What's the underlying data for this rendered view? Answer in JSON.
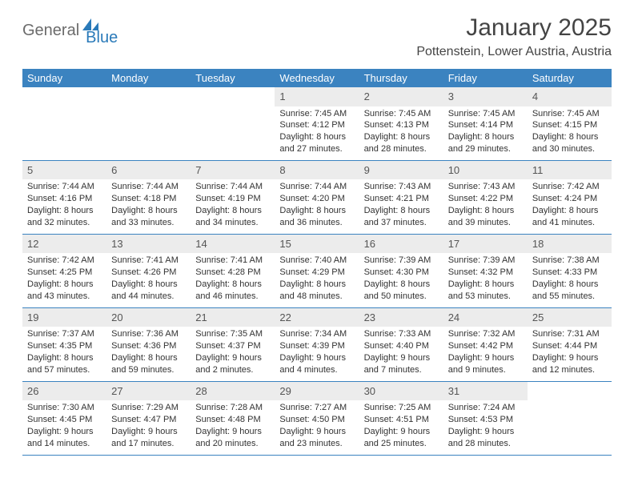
{
  "logo": {
    "part1": "General",
    "part2": "Blue"
  },
  "title": "January 2025",
  "location": "Pottenstein, Lower Austria, Austria",
  "colors": {
    "header_bg": "#3b83c0",
    "header_text": "#ffffff",
    "daynum_bg": "#ececec",
    "border": "#3b83c0",
    "logo_gray": "#6b6b6b",
    "logo_blue": "#2a7ab9"
  },
  "dayHeaders": [
    "Sunday",
    "Monday",
    "Tuesday",
    "Wednesday",
    "Thursday",
    "Friday",
    "Saturday"
  ],
  "weeks": [
    [
      {
        "num": "",
        "sunrise": "",
        "sunset": "",
        "daylight": ""
      },
      {
        "num": "",
        "sunrise": "",
        "sunset": "",
        "daylight": ""
      },
      {
        "num": "",
        "sunrise": "",
        "sunset": "",
        "daylight": ""
      },
      {
        "num": "1",
        "sunrise": "Sunrise: 7:45 AM",
        "sunset": "Sunset: 4:12 PM",
        "daylight": "Daylight: 8 hours and 27 minutes."
      },
      {
        "num": "2",
        "sunrise": "Sunrise: 7:45 AM",
        "sunset": "Sunset: 4:13 PM",
        "daylight": "Daylight: 8 hours and 28 minutes."
      },
      {
        "num": "3",
        "sunrise": "Sunrise: 7:45 AM",
        "sunset": "Sunset: 4:14 PM",
        "daylight": "Daylight: 8 hours and 29 minutes."
      },
      {
        "num": "4",
        "sunrise": "Sunrise: 7:45 AM",
        "sunset": "Sunset: 4:15 PM",
        "daylight": "Daylight: 8 hours and 30 minutes."
      }
    ],
    [
      {
        "num": "5",
        "sunrise": "Sunrise: 7:44 AM",
        "sunset": "Sunset: 4:16 PM",
        "daylight": "Daylight: 8 hours and 32 minutes."
      },
      {
        "num": "6",
        "sunrise": "Sunrise: 7:44 AM",
        "sunset": "Sunset: 4:18 PM",
        "daylight": "Daylight: 8 hours and 33 minutes."
      },
      {
        "num": "7",
        "sunrise": "Sunrise: 7:44 AM",
        "sunset": "Sunset: 4:19 PM",
        "daylight": "Daylight: 8 hours and 34 minutes."
      },
      {
        "num": "8",
        "sunrise": "Sunrise: 7:44 AM",
        "sunset": "Sunset: 4:20 PM",
        "daylight": "Daylight: 8 hours and 36 minutes."
      },
      {
        "num": "9",
        "sunrise": "Sunrise: 7:43 AM",
        "sunset": "Sunset: 4:21 PM",
        "daylight": "Daylight: 8 hours and 37 minutes."
      },
      {
        "num": "10",
        "sunrise": "Sunrise: 7:43 AM",
        "sunset": "Sunset: 4:22 PM",
        "daylight": "Daylight: 8 hours and 39 minutes."
      },
      {
        "num": "11",
        "sunrise": "Sunrise: 7:42 AM",
        "sunset": "Sunset: 4:24 PM",
        "daylight": "Daylight: 8 hours and 41 minutes."
      }
    ],
    [
      {
        "num": "12",
        "sunrise": "Sunrise: 7:42 AM",
        "sunset": "Sunset: 4:25 PM",
        "daylight": "Daylight: 8 hours and 43 minutes."
      },
      {
        "num": "13",
        "sunrise": "Sunrise: 7:41 AM",
        "sunset": "Sunset: 4:26 PM",
        "daylight": "Daylight: 8 hours and 44 minutes."
      },
      {
        "num": "14",
        "sunrise": "Sunrise: 7:41 AM",
        "sunset": "Sunset: 4:28 PM",
        "daylight": "Daylight: 8 hours and 46 minutes."
      },
      {
        "num": "15",
        "sunrise": "Sunrise: 7:40 AM",
        "sunset": "Sunset: 4:29 PM",
        "daylight": "Daylight: 8 hours and 48 minutes."
      },
      {
        "num": "16",
        "sunrise": "Sunrise: 7:39 AM",
        "sunset": "Sunset: 4:30 PM",
        "daylight": "Daylight: 8 hours and 50 minutes."
      },
      {
        "num": "17",
        "sunrise": "Sunrise: 7:39 AM",
        "sunset": "Sunset: 4:32 PM",
        "daylight": "Daylight: 8 hours and 53 minutes."
      },
      {
        "num": "18",
        "sunrise": "Sunrise: 7:38 AM",
        "sunset": "Sunset: 4:33 PM",
        "daylight": "Daylight: 8 hours and 55 minutes."
      }
    ],
    [
      {
        "num": "19",
        "sunrise": "Sunrise: 7:37 AM",
        "sunset": "Sunset: 4:35 PM",
        "daylight": "Daylight: 8 hours and 57 minutes."
      },
      {
        "num": "20",
        "sunrise": "Sunrise: 7:36 AM",
        "sunset": "Sunset: 4:36 PM",
        "daylight": "Daylight: 8 hours and 59 minutes."
      },
      {
        "num": "21",
        "sunrise": "Sunrise: 7:35 AM",
        "sunset": "Sunset: 4:37 PM",
        "daylight": "Daylight: 9 hours and 2 minutes."
      },
      {
        "num": "22",
        "sunrise": "Sunrise: 7:34 AM",
        "sunset": "Sunset: 4:39 PM",
        "daylight": "Daylight: 9 hours and 4 minutes."
      },
      {
        "num": "23",
        "sunrise": "Sunrise: 7:33 AM",
        "sunset": "Sunset: 4:40 PM",
        "daylight": "Daylight: 9 hours and 7 minutes."
      },
      {
        "num": "24",
        "sunrise": "Sunrise: 7:32 AM",
        "sunset": "Sunset: 4:42 PM",
        "daylight": "Daylight: 9 hours and 9 minutes."
      },
      {
        "num": "25",
        "sunrise": "Sunrise: 7:31 AM",
        "sunset": "Sunset: 4:44 PM",
        "daylight": "Daylight: 9 hours and 12 minutes."
      }
    ],
    [
      {
        "num": "26",
        "sunrise": "Sunrise: 7:30 AM",
        "sunset": "Sunset: 4:45 PM",
        "daylight": "Daylight: 9 hours and 14 minutes."
      },
      {
        "num": "27",
        "sunrise": "Sunrise: 7:29 AM",
        "sunset": "Sunset: 4:47 PM",
        "daylight": "Daylight: 9 hours and 17 minutes."
      },
      {
        "num": "28",
        "sunrise": "Sunrise: 7:28 AM",
        "sunset": "Sunset: 4:48 PM",
        "daylight": "Daylight: 9 hours and 20 minutes."
      },
      {
        "num": "29",
        "sunrise": "Sunrise: 7:27 AM",
        "sunset": "Sunset: 4:50 PM",
        "daylight": "Daylight: 9 hours and 23 minutes."
      },
      {
        "num": "30",
        "sunrise": "Sunrise: 7:25 AM",
        "sunset": "Sunset: 4:51 PM",
        "daylight": "Daylight: 9 hours and 25 minutes."
      },
      {
        "num": "31",
        "sunrise": "Sunrise: 7:24 AM",
        "sunset": "Sunset: 4:53 PM",
        "daylight": "Daylight: 9 hours and 28 minutes."
      },
      {
        "num": "",
        "sunrise": "",
        "sunset": "",
        "daylight": ""
      }
    ]
  ]
}
